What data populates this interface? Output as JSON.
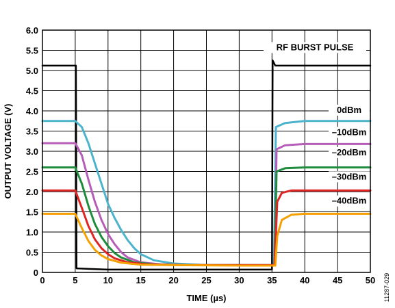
{
  "chart_data": {
    "type": "line",
    "xlabel": "TIME (µs)",
    "ylabel": "OUTPUT VOLTAGE (V)",
    "xlim": [
      0,
      50
    ],
    "ylim": [
      0,
      6
    ],
    "x_ticks": [
      "0",
      "5",
      "10",
      "15",
      "20",
      "25",
      "30",
      "35",
      "40",
      "45",
      "50"
    ],
    "y_ticks": [
      "0",
      "0.5",
      "1.0",
      "1.5",
      "2.0",
      "2.5",
      "3.0",
      "3.5",
      "4.0",
      "4.5",
      "5.0",
      "5.5",
      "6.0"
    ],
    "grid": true,
    "figure_id": "11287-029",
    "series": [
      {
        "name": "RF BURST PULSE",
        "color": "#000000",
        "points": [
          [
            0,
            5.12
          ],
          [
            5.1,
            5.12
          ],
          [
            5.2,
            0.1
          ],
          [
            10,
            0.07
          ],
          [
            20,
            0.07
          ],
          [
            30,
            0.07
          ],
          [
            35.0,
            0.07
          ],
          [
            35.1,
            5.25
          ],
          [
            35.5,
            5.12
          ],
          [
            40,
            5.12
          ],
          [
            50,
            5.12
          ]
        ]
      },
      {
        "name": "0dBm",
        "color": "#4bb3cc",
        "points": [
          [
            0,
            3.75
          ],
          [
            5,
            3.75
          ],
          [
            6,
            3.6
          ],
          [
            7,
            3.2
          ],
          [
            8,
            2.7
          ],
          [
            9,
            2.2
          ],
          [
            10,
            1.7
          ],
          [
            11,
            1.35
          ],
          [
            12,
            1.05
          ],
          [
            13,
            0.8
          ],
          [
            14,
            0.6
          ],
          [
            15,
            0.45
          ],
          [
            17,
            0.3
          ],
          [
            20,
            0.22
          ],
          [
            25,
            0.18
          ],
          [
            30,
            0.18
          ],
          [
            35.3,
            0.18
          ],
          [
            35.6,
            3.6
          ],
          [
            37,
            3.7
          ],
          [
            40,
            3.75
          ],
          [
            50,
            3.75
          ]
        ]
      },
      {
        "name": "–10dBm",
        "color": "#b55db8",
        "points": [
          [
            0,
            3.2
          ],
          [
            5,
            3.2
          ],
          [
            6,
            2.9
          ],
          [
            7,
            2.3
          ],
          [
            8,
            1.75
          ],
          [
            9,
            1.3
          ],
          [
            10,
            0.95
          ],
          [
            11,
            0.7
          ],
          [
            12,
            0.5
          ],
          [
            13,
            0.37
          ],
          [
            15,
            0.25
          ],
          [
            18,
            0.2
          ],
          [
            22,
            0.18
          ],
          [
            30,
            0.18
          ],
          [
            35.4,
            0.18
          ],
          [
            35.7,
            3.05
          ],
          [
            37,
            3.15
          ],
          [
            40,
            3.18
          ],
          [
            50,
            3.18
          ]
        ]
      },
      {
        "name": "–20dBm",
        "color": "#1e8c3c",
        "points": [
          [
            0,
            2.6
          ],
          [
            5,
            2.6
          ],
          [
            6,
            2.2
          ],
          [
            7,
            1.65
          ],
          [
            8,
            1.2
          ],
          [
            9,
            0.88
          ],
          [
            10,
            0.65
          ],
          [
            11,
            0.48
          ],
          [
            12,
            0.37
          ],
          [
            14,
            0.25
          ],
          [
            17,
            0.2
          ],
          [
            22,
            0.18
          ],
          [
            30,
            0.18
          ],
          [
            35.4,
            0.18
          ],
          [
            35.7,
            2.5
          ],
          [
            37,
            2.58
          ],
          [
            40,
            2.6
          ],
          [
            50,
            2.6
          ]
        ]
      },
      {
        "name": "–30dBm",
        "color": "#e02424",
        "points": [
          [
            0,
            2.03
          ],
          [
            5,
            2.03
          ],
          [
            6,
            1.6
          ],
          [
            7,
            1.15
          ],
          [
            8,
            0.82
          ],
          [
            9,
            0.6
          ],
          [
            10,
            0.45
          ],
          [
            11,
            0.35
          ],
          [
            13,
            0.25
          ],
          [
            16,
            0.2
          ],
          [
            22,
            0.18
          ],
          [
            30,
            0.18
          ],
          [
            35.4,
            0.18
          ],
          [
            35.8,
            1.75
          ],
          [
            36.5,
            1.97
          ],
          [
            38,
            2.03
          ],
          [
            50,
            2.03
          ]
        ]
      },
      {
        "name": "–40dBm",
        "color": "#f5a000",
        "points": [
          [
            0,
            1.45
          ],
          [
            5,
            1.45
          ],
          [
            6,
            1.1
          ],
          [
            7,
            0.78
          ],
          [
            8,
            0.56
          ],
          [
            9,
            0.42
          ],
          [
            10,
            0.33
          ],
          [
            12,
            0.24
          ],
          [
            15,
            0.19
          ],
          [
            20,
            0.18
          ],
          [
            30,
            0.17
          ],
          [
            35.5,
            0.17
          ],
          [
            35.8,
            0.9
          ],
          [
            36.5,
            1.3
          ],
          [
            38,
            1.43
          ],
          [
            40,
            1.45
          ],
          [
            50,
            1.45
          ]
        ]
      }
    ]
  }
}
